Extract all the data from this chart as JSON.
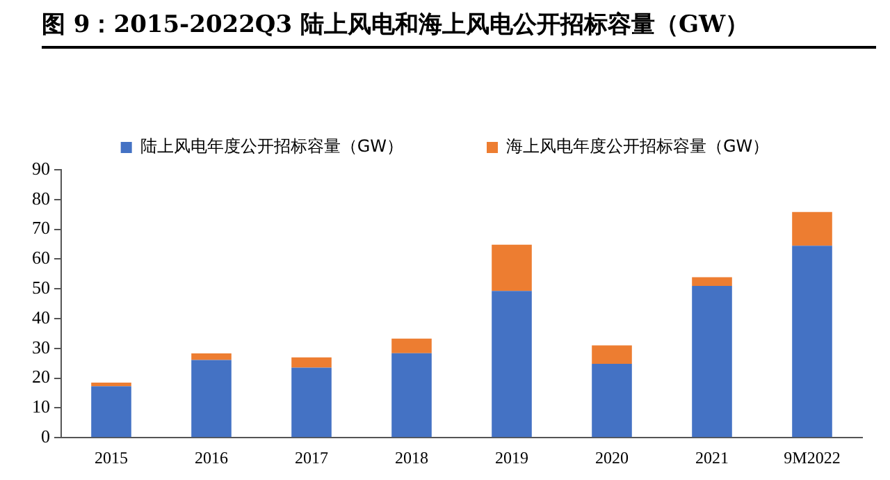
{
  "chart_data": {
    "type": "bar",
    "title": "图 9：2015-2022Q3 陆上风电和海上风电公开招标容量（GW）",
    "categories": [
      "2015",
      "2016",
      "2017",
      "2018",
      "2019",
      "2020",
      "2021",
      "9M2022"
    ],
    "stacked": true,
    "series": [
      {
        "name": "陆上风电年度公开招标容量（GW）",
        "color": "#4472c4",
        "values": [
          17.3,
          26.1,
          23.5,
          28.4,
          49.3,
          24.8,
          51,
          64.5
        ]
      },
      {
        "name": "海上风电年度公开招标容量（GW）",
        "color": "#ed7d31",
        "values": [
          1.2,
          2.2,
          3.5,
          4.9,
          15.5,
          6.2,
          2.9,
          11.3
        ]
      }
    ],
    "ylim": [
      0,
      90
    ],
    "yticks": [
      0,
      10,
      20,
      30,
      40,
      50,
      60,
      70,
      80,
      90
    ],
    "grid": false,
    "legend": "top"
  }
}
